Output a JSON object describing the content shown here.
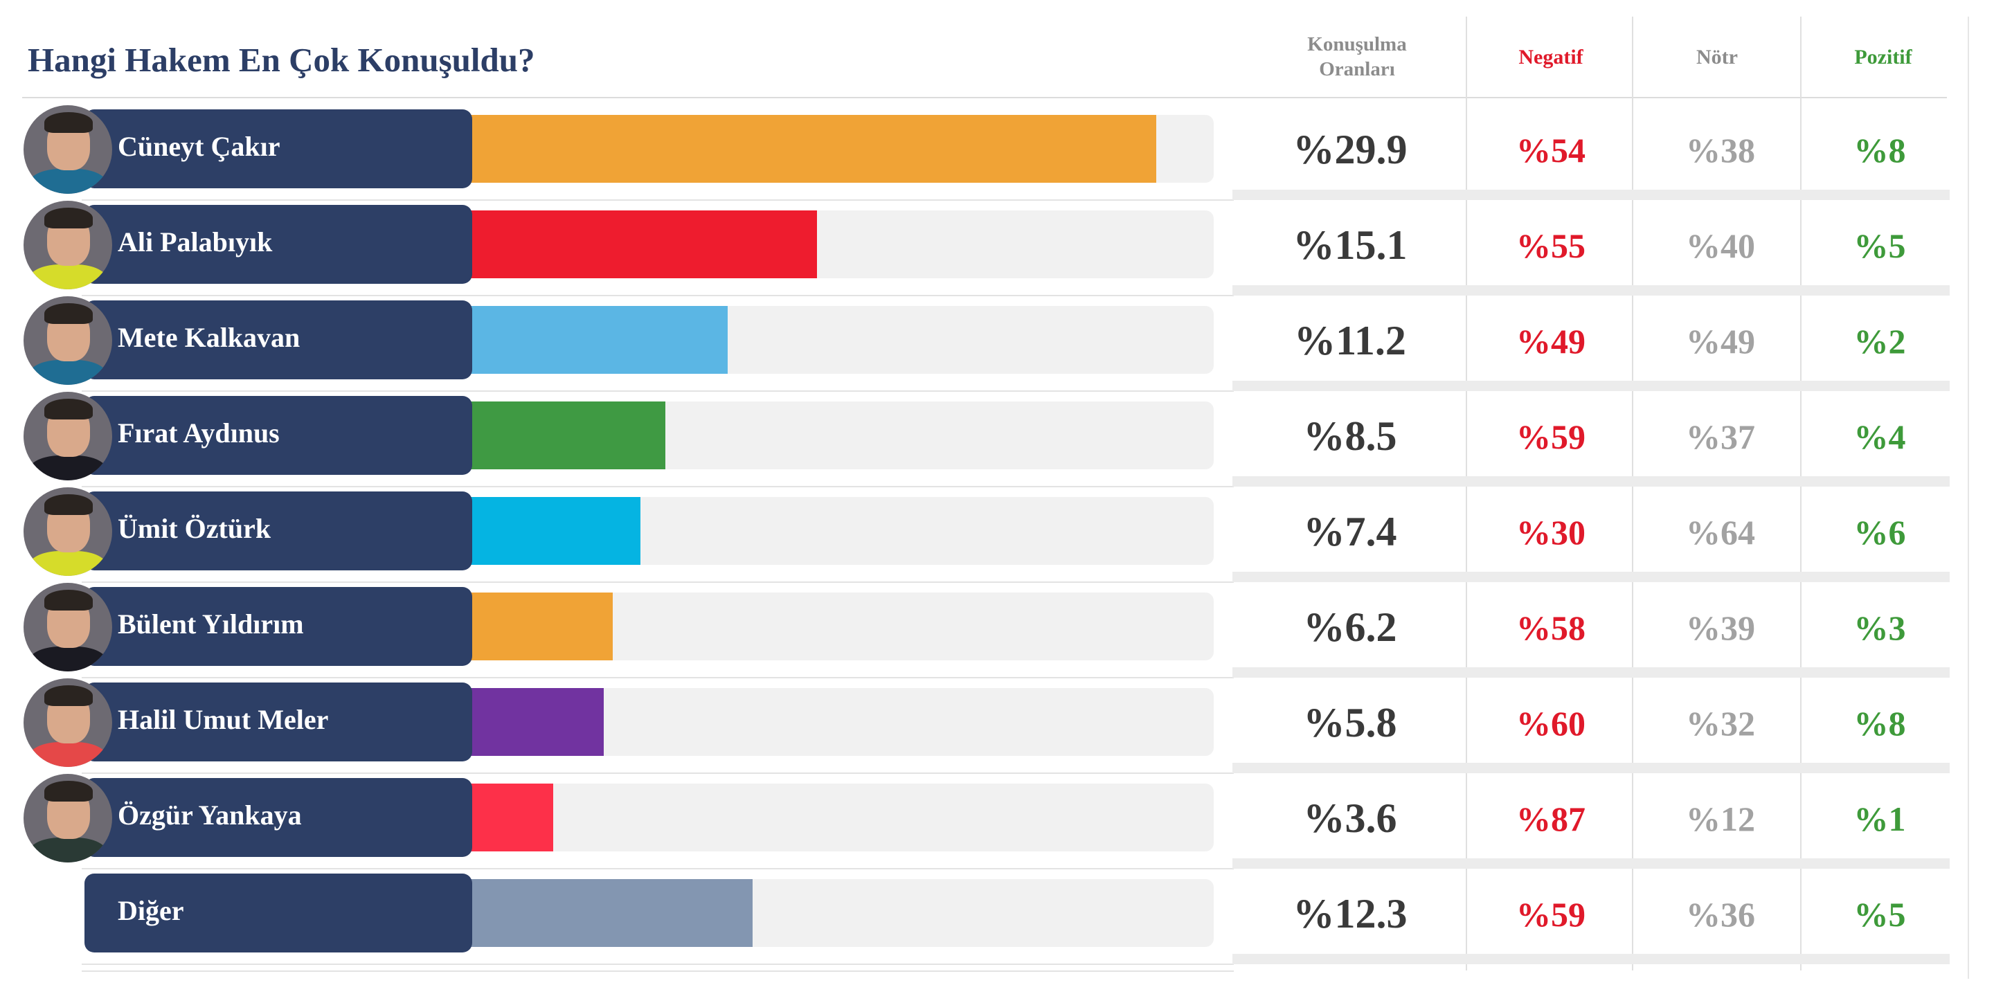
{
  "title": "Hangi Hakem En Çok Konuşuldu?",
  "columns": {
    "share_line1": "Konuşulma",
    "share_line2": "Oranları",
    "negative": "Negatif",
    "neutral": "Nötr",
    "positive": "Pozitif"
  },
  "colors": {
    "title": "#2c3e66",
    "name_box": "#2d3f66",
    "negative": "#e0192a",
    "neutral": "#a2a2a2",
    "positive": "#3e9a3a",
    "track": "#f1f1f1"
  },
  "chart_data": {
    "type": "bar",
    "orientation": "horizontal",
    "title": "Hangi Hakem En Çok Konuşuldu?",
    "categories": [
      "Cüneyt Çakır",
      "Ali Palabıyık",
      "Mete Kalkavan",
      "Fırat Aydınus",
      "Ümit Öztürk",
      "Bülent Yıldırım",
      "Halil Umut Meler",
      "Özgür Yankaya",
      "Diğer"
    ],
    "values": [
      29.9,
      15.1,
      11.2,
      8.5,
      7.4,
      6.2,
      5.8,
      3.6,
      12.3
    ],
    "value_labels": [
      "%29.9",
      "%15.1",
      "%11.2",
      "%8.5",
      "%7.4",
      "%6.2",
      "%5.8",
      "%3.6",
      "%12.3"
    ],
    "bar_colors": [
      "#f0a336",
      "#ee1c2e",
      "#5bb6e4",
      "#3f9a43",
      "#05b4e2",
      "#f0a336",
      "#7133a0",
      "#fd3049",
      "#8396b1"
    ],
    "xlim": [
      0,
      32.4
    ],
    "sentiment": {
      "negative": [
        "%54",
        "%55",
        "%49",
        "%59",
        "%30",
        "%58",
        "%60",
        "%87",
        "%59"
      ],
      "neutral": [
        "%38",
        "%40",
        "%49",
        "%37",
        "%64",
        "%39",
        "%32",
        "%12",
        "%36"
      ],
      "positive": [
        "%8",
        "%5",
        "%2",
        "%4",
        "%6",
        "%3",
        "%8",
        "%1",
        "%5"
      ]
    },
    "avatars": [
      "referee-photo",
      "referee-photo",
      "referee-photo",
      "referee-photo",
      "referee-photo",
      "referee-photo",
      "referee-photo",
      "referee-photo",
      null
    ],
    "avatar_shirts": [
      "#1f6d93",
      "#d6dc2a",
      "#1f6d93",
      "#1a1a22",
      "#d6dc2a",
      "#1a1a22",
      "#e54848",
      "#2a3a35",
      null
    ]
  }
}
